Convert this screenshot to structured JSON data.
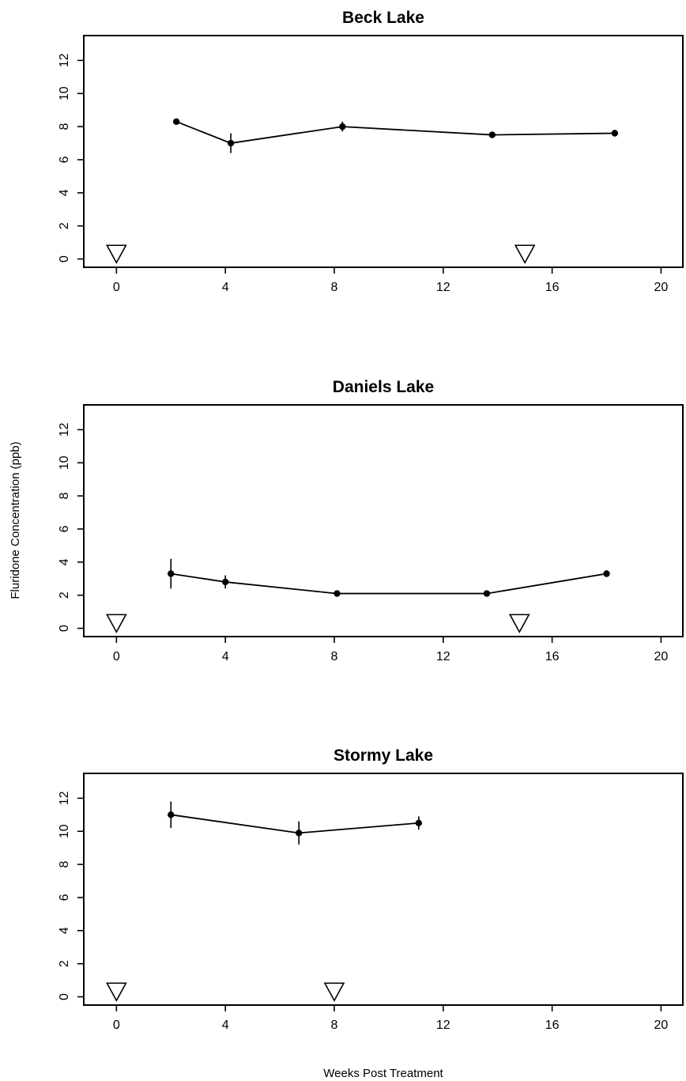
{
  "figure": {
    "ylabel": "Fluridone Concentration (ppb)",
    "xlabel": "Weeks Post Treatment"
  },
  "chart_data": [
    {
      "type": "line",
      "title": "Beck Lake",
      "xlim": [
        -1.2,
        20.8
      ],
      "ylim": [
        -0.5,
        13.5
      ],
      "xticks": [
        "0",
        "4",
        "8",
        "12",
        "16",
        "20"
      ],
      "yticks": [
        "0",
        "2",
        "4",
        "6",
        "8",
        "10",
        "12"
      ],
      "grid": false,
      "series": [
        {
          "x": [
            2.2,
            4.2,
            8.3,
            13.8,
            18.3
          ],
          "y": [
            8.3,
            7.0,
            8.0,
            7.5,
            7.6
          ],
          "yerr": [
            0.1,
            0.6,
            0.3,
            0.1,
            0.2
          ]
        }
      ],
      "markers": {
        "symbol": "open-triangle-down",
        "x": [
          0,
          15
        ],
        "y": [
          0.3,
          0.3
        ]
      }
    },
    {
      "type": "line",
      "title": "Daniels Lake",
      "xlim": [
        -1.2,
        20.8
      ],
      "ylim": [
        -0.5,
        13.5
      ],
      "xticks": [
        "0",
        "4",
        "8",
        "12",
        "16",
        "20"
      ],
      "yticks": [
        "0",
        "2",
        "4",
        "6",
        "8",
        "10",
        "12"
      ],
      "grid": false,
      "series": [
        {
          "x": [
            2.0,
            4.0,
            8.1,
            13.6,
            18.0
          ],
          "y": [
            3.3,
            2.8,
            2.1,
            2.1,
            3.3
          ],
          "yerr": [
            0.9,
            0.4,
            0.1,
            0.1,
            0.2
          ]
        }
      ],
      "markers": {
        "symbol": "open-triangle-down",
        "x": [
          0,
          14.8
        ],
        "y": [
          0.3,
          0.3
        ]
      }
    },
    {
      "type": "line",
      "title": "Stormy Lake",
      "xlim": [
        -1.2,
        20.8
      ],
      "ylim": [
        -0.5,
        13.5
      ],
      "xticks": [
        "0",
        "4",
        "8",
        "12",
        "16",
        "20"
      ],
      "yticks": [
        "0",
        "2",
        "4",
        "6",
        "8",
        "10",
        "12"
      ],
      "grid": false,
      "series": [
        {
          "x": [
            2.0,
            6.7,
            11.1
          ],
          "y": [
            11.0,
            9.9,
            10.5
          ],
          "yerr": [
            0.8,
            0.7,
            0.4
          ]
        }
      ],
      "markers": {
        "symbol": "open-triangle-down",
        "x": [
          0,
          8
        ],
        "y": [
          0.3,
          0.3
        ]
      }
    }
  ]
}
